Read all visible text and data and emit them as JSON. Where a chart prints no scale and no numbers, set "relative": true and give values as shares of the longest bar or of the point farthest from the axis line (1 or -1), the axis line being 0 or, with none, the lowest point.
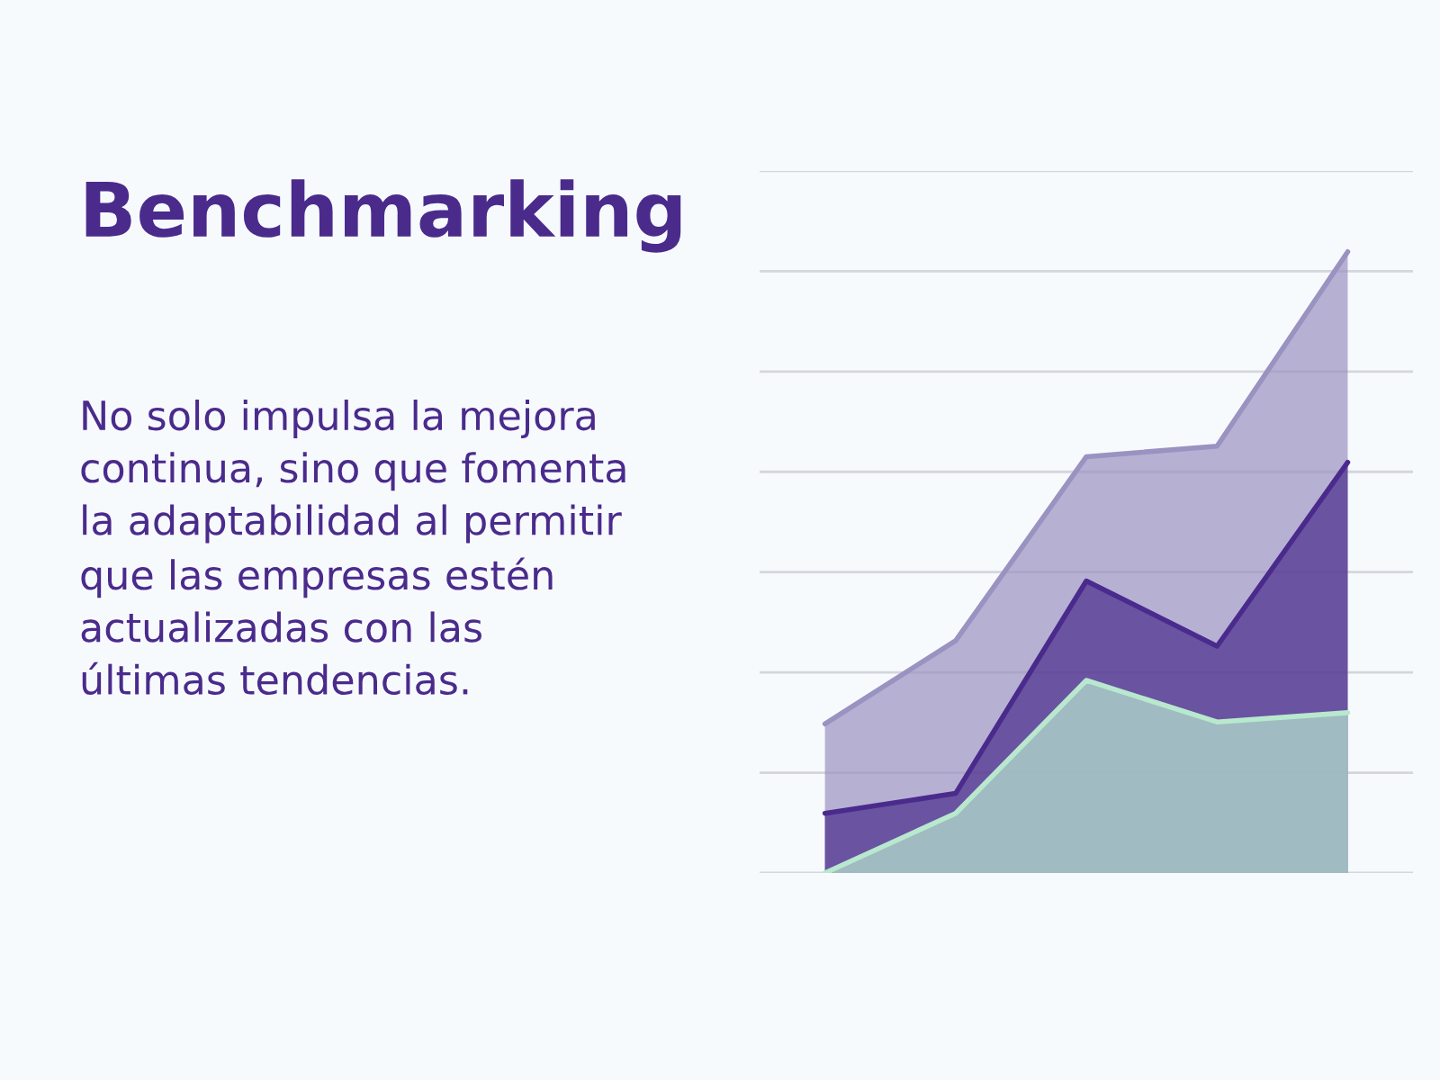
{
  "chart_data": {
    "type": "area",
    "title": "Benchmarking",
    "annotations": [
      "No solo impulsa la mejora\ncontinua, sino que fomenta\nla adaptabilidad al permitir\nque las empresas estén\nactualizadas con las\núltimas tendencias."
    ],
    "categories": [
      null,
      null,
      null,
      null,
      null
    ],
    "relative": true,
    "grid": "y",
    "legend": false,
    "series": [
      {
        "color": "#9a92c0",
        "values": [
          0.24,
          0.374,
          0.67,
          0.687,
          1
        ]
      },
      {
        "color": "#4a2b8c",
        "values": [
          0.096,
          0.128,
          0.47,
          0.365,
          0.661
        ]
      },
      {
        "color": "#b8e8ce",
        "values": [
          0,
          0.096,
          0.31,
          0.243,
          0.258
        ]
      }
    ]
  }
}
